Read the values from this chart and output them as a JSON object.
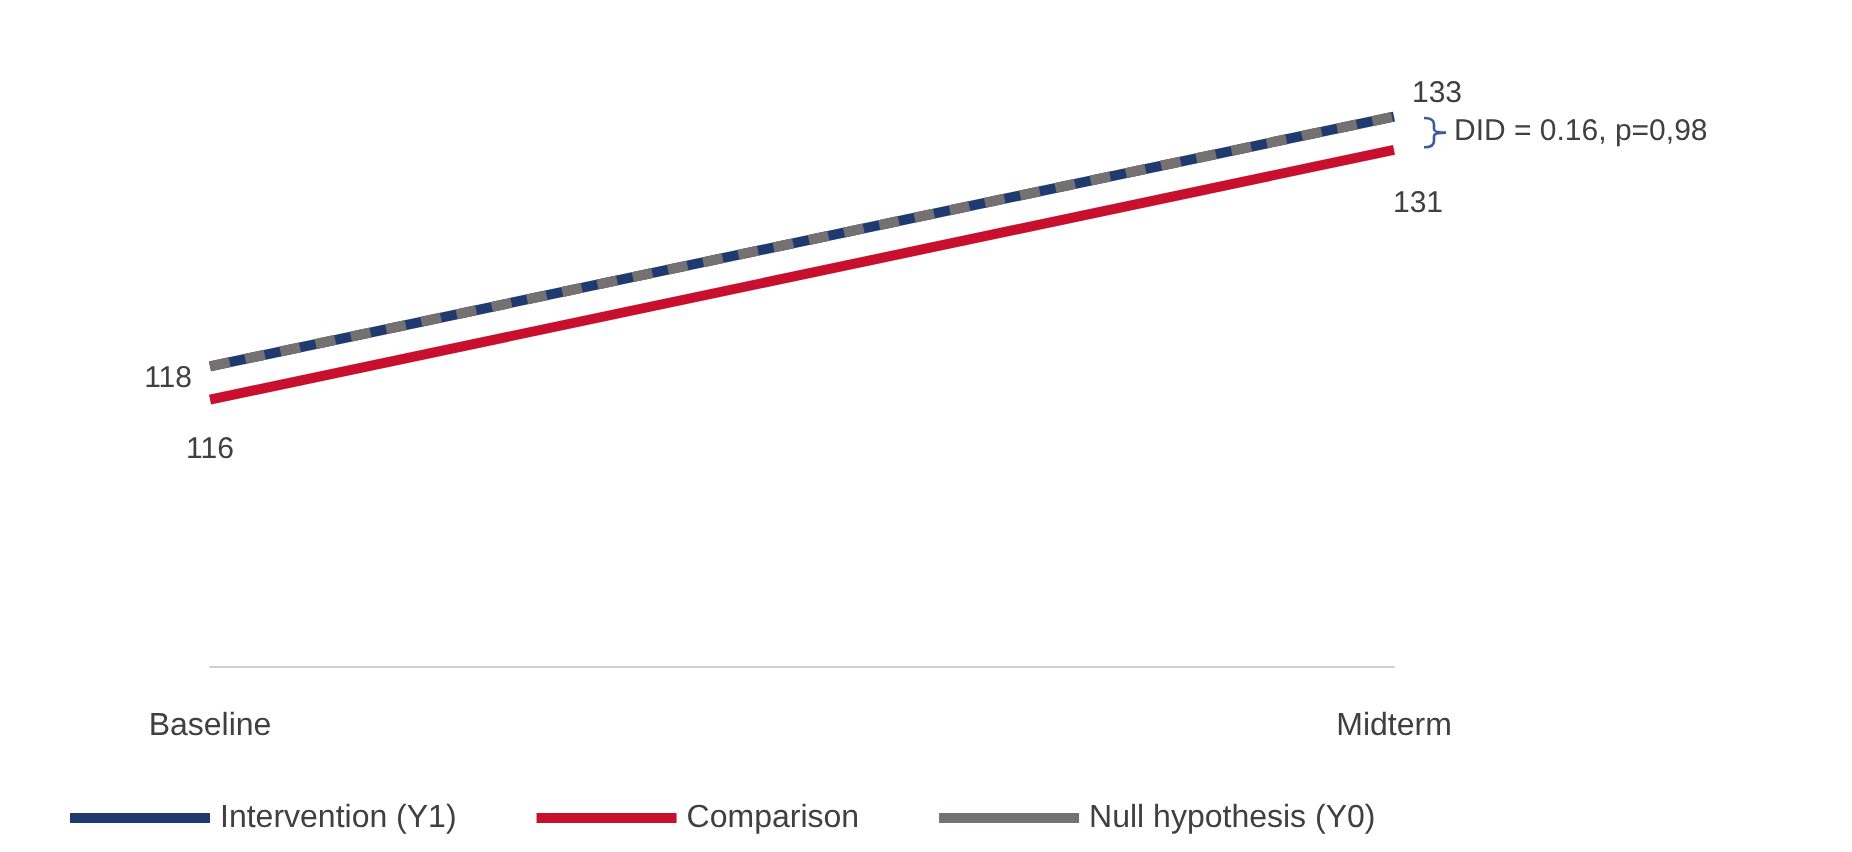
{
  "chart_data": {
    "type": "line",
    "categories": [
      "Baseline",
      "Midterm"
    ],
    "series": [
      {
        "name": "Intervention (Y1)",
        "color": "#1f3a6e",
        "values": [
          118,
          133
        ],
        "value_labels": [
          "118",
          "133"
        ],
        "line_style": "solid"
      },
      {
        "name": "Comparison",
        "color": "#c8102e",
        "values": [
          116,
          131
        ],
        "value_labels": [
          "116",
          "131"
        ],
        "line_style": "solid"
      },
      {
        "name": "Null hypothesis (Y0)",
        "color": "#767171",
        "values": [
          118,
          133
        ],
        "value_labels": [
          null,
          null
        ],
        "line_style": "dashed"
      }
    ],
    "annotations": [
      "DID = 0.16, p=0,98"
    ],
    "marker": "none",
    "legend": "bottom",
    "tick_labels": "x"
  }
}
